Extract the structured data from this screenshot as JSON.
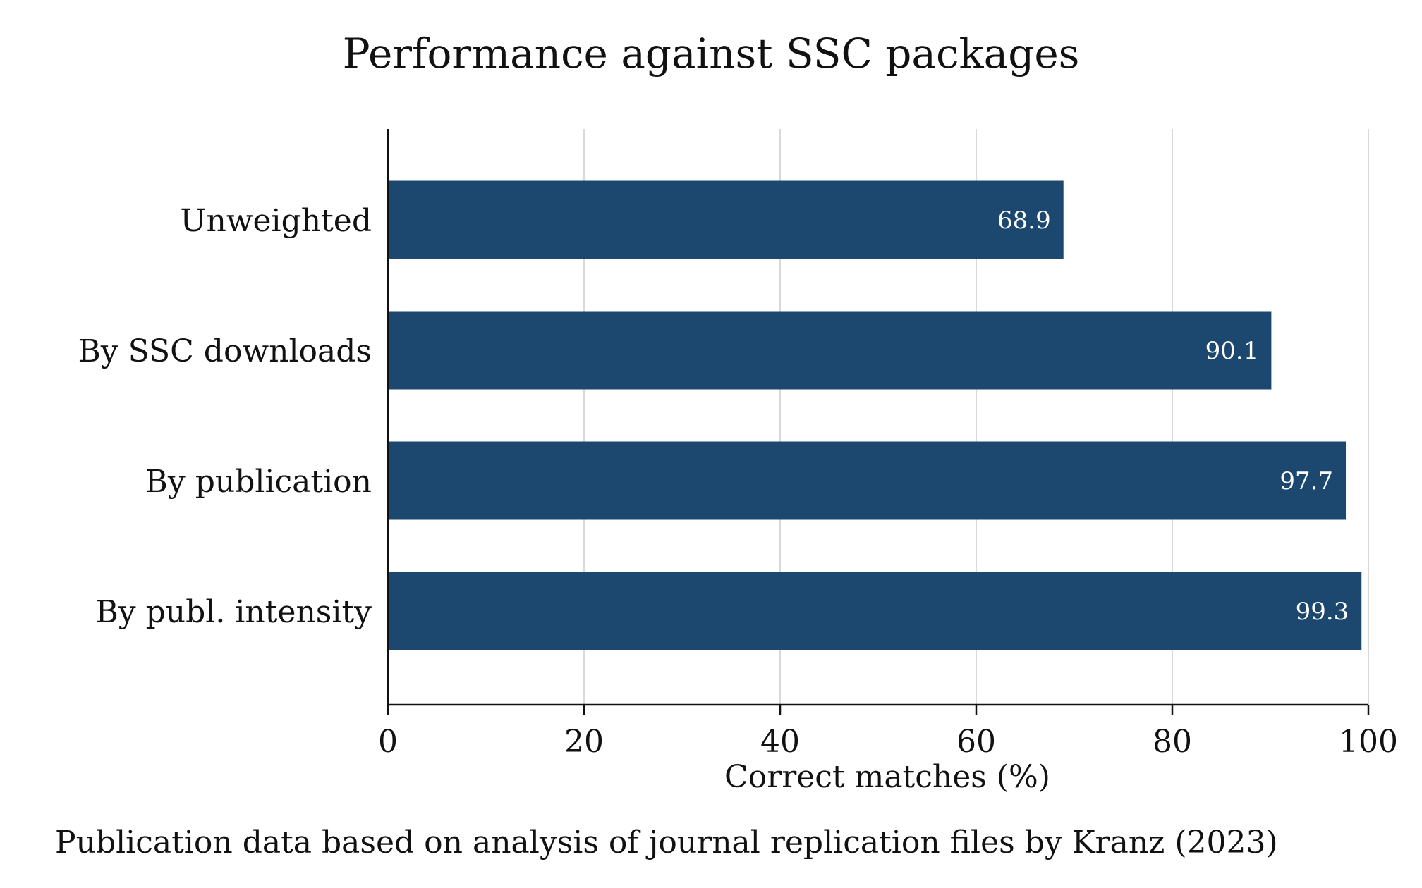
{
  "chart_data": {
    "type": "bar",
    "orientation": "horizontal",
    "title": "Performance against SSC packages",
    "xlabel": "Correct matches (%)",
    "note": "Publication data based on analysis of journal replication files by Kranz (2023)",
    "categories": [
      "Unweighted",
      "By SSC downloads",
      "By publication",
      "By publ. intensity"
    ],
    "values": [
      68.9,
      90.1,
      97.7,
      99.3
    ],
    "value_labels": [
      "68.9",
      "90.1",
      "97.7",
      "99.3"
    ],
    "xlim": [
      0,
      100
    ],
    "xticks": [
      0,
      20,
      40,
      60,
      80,
      100
    ],
    "xtick_labels": [
      "0",
      "20",
      "40",
      "60",
      "80",
      "100"
    ],
    "grid": true,
    "bar_color": "#1c4870",
    "grid_color": "#d9d9d9",
    "label_color": "#ffffff"
  }
}
